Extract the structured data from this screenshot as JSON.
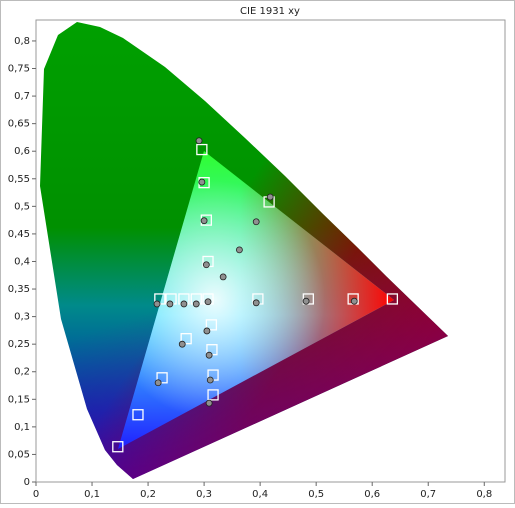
{
  "chart_data": {
    "type": "scatter",
    "title": "CIE 1931 xy",
    "xlim": [
      0,
      0.837
    ],
    "ylim": [
      0,
      0.838
    ],
    "xticks": [
      0,
      {
        "value": 0.1,
        "label": "0,1"
      },
      {
        "value": 0.2,
        "label": "0,2"
      },
      {
        "value": 0.3,
        "label": "0,3"
      },
      {
        "value": 0.4,
        "label": "0,4"
      },
      {
        "value": 0.5,
        "label": "0,5"
      },
      {
        "value": 0.6,
        "label": "0,6"
      },
      {
        "value": 0.7,
        "label": "0,7"
      },
      {
        "value": 0.8,
        "label": "0,8"
      }
    ],
    "yticks": [
      0,
      {
        "value": 0.05,
        "label": "0,05"
      },
      {
        "value": 0.1,
        "label": "0,1"
      },
      {
        "value": 0.15,
        "label": "0,15"
      },
      {
        "value": 0.2,
        "label": "0,2"
      },
      {
        "value": 0.25,
        "label": "0,25"
      },
      {
        "value": 0.3,
        "label": "0,3"
      },
      {
        "value": 0.35,
        "label": "0,35"
      },
      {
        "value": 0.4,
        "label": "0,4"
      },
      {
        "value": 0.45,
        "label": "0,45"
      },
      {
        "value": 0.5,
        "label": "0,5"
      },
      {
        "value": 0.55,
        "label": "0,55"
      },
      {
        "value": 0.6,
        "label": "0,6"
      },
      {
        "value": 0.65,
        "label": "0,65"
      },
      {
        "value": 0.7,
        "label": "0,7"
      },
      {
        "value": 0.75,
        "label": "0,75"
      },
      {
        "value": 0.8,
        "label": "0,8"
      }
    ],
    "series": [
      {
        "marker": "square",
        "color": "#ffffff",
        "x": [
          0.296,
          0.3,
          0.304,
          0.307,
          0.307,
          0.416,
          0.396,
          0.486,
          0.566,
          0.636,
          0.221,
          0.241,
          0.264,
          0.286,
          0.313,
          0.268,
          0.314,
          0.225,
          0.316,
          0.316,
          0.182,
          0.146
        ],
        "values": [
          0.603,
          0.543,
          0.475,
          0.4,
          0.332,
          0.508,
          0.332,
          0.332,
          0.332,
          0.332,
          0.332,
          0.332,
          0.332,
          0.332,
          0.285,
          0.26,
          0.24,
          0.189,
          0.194,
          0.158,
          0.122,
          0.064
        ]
      },
      {
        "marker": "circle",
        "color": "#909090",
        "x": [
          0.291,
          0.296,
          0.3,
          0.418,
          0.393,
          0.363,
          0.304,
          0.334,
          0.307,
          0.216,
          0.239,
          0.264,
          0.286,
          0.393,
          0.482,
          0.568,
          0.305,
          0.261,
          0.309,
          0.218,
          0.311,
          0.309
        ],
        "values": [
          0.619,
          0.544,
          0.474,
          0.517,
          0.472,
          0.421,
          0.394,
          0.372,
          0.327,
          0.323,
          0.323,
          0.323,
          0.323,
          0.325,
          0.328,
          0.328,
          0.274,
          0.25,
          0.23,
          0.18,
          0.185,
          0.143
        ]
      }
    ]
  }
}
